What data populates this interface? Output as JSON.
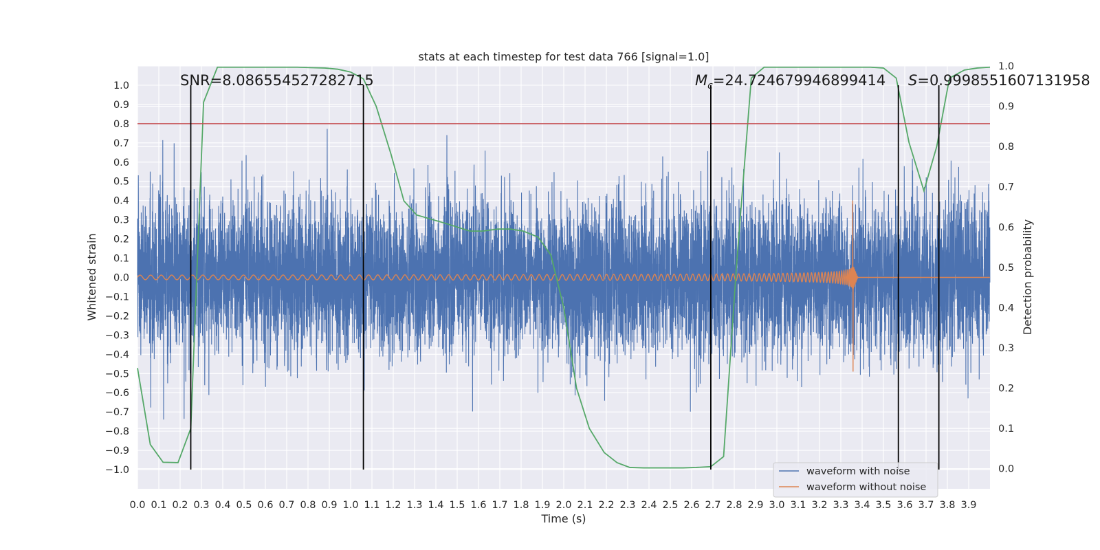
{
  "chart_data": {
    "type": "line",
    "title": "stats at each timestep for test data 766 [signal=1.0]",
    "xlabel": "Time (s)",
    "ylabel": "Whitened strain",
    "y2label": "Detection probability",
    "xlim": [
      0.0,
      4.0
    ],
    "ylim": [
      -1.1,
      1.1
    ],
    "y2lim": [
      -0.05,
      1.0
    ],
    "x_ticks": [
      0.0,
      0.1,
      0.2,
      0.3,
      0.4,
      0.5,
      0.6,
      0.7,
      0.8,
      0.9,
      1.0,
      1.1,
      1.2,
      1.3,
      1.4,
      1.5,
      1.6,
      1.7,
      1.8,
      1.9,
      2.0,
      2.1,
      2.2,
      2.3,
      2.4,
      2.5,
      2.6,
      2.7,
      2.8,
      2.9,
      3.0,
      3.1,
      3.2,
      3.3,
      3.4,
      3.5,
      3.6,
      3.7,
      3.8,
      3.9
    ],
    "x_tick_labels": [
      "0.0",
      "0.1",
      "0.2",
      "0.3",
      "0.4",
      "0.5",
      "0.6",
      "0.7",
      "0.8",
      "0.9",
      "1.0",
      "1.1",
      "1.2",
      "1.3",
      "1.4",
      "1.5",
      "1.6",
      "1.7",
      "1.8",
      "1.9",
      "2.0",
      "2.1",
      "2.2",
      "2.3",
      "2.4",
      "2.5",
      "2.6",
      "2.7",
      "2.8",
      "2.9",
      "3.0",
      "3.1",
      "3.2",
      "3.3",
      "3.4",
      "3.5",
      "3.6",
      "3.7",
      "3.8",
      "3.9"
    ],
    "y_ticks": [
      -1.0,
      -0.9,
      -0.8,
      -0.7,
      -0.6,
      -0.5,
      -0.4,
      -0.3,
      -0.2,
      -0.1,
      0.0,
      0.1,
      0.2,
      0.3,
      0.4,
      0.5,
      0.6,
      0.7,
      0.8,
      0.9,
      1.0
    ],
    "y_tick_labels": [
      "−1.0",
      "−0.9",
      "−0.8",
      "−0.7",
      "−0.6",
      "−0.5",
      "−0.4",
      "−0.3",
      "−0.2",
      "−0.1",
      "0.0",
      "0.1",
      "0.2",
      "0.3",
      "0.4",
      "0.5",
      "0.6",
      "0.7",
      "0.8",
      "0.9",
      "1.0"
    ],
    "y2_ticks": [
      0.0,
      0.1,
      0.2,
      0.3,
      0.4,
      0.5,
      0.6,
      0.7,
      0.8,
      0.9,
      1.0
    ],
    "y2_tick_labels": [
      "0.0",
      "0.1",
      "0.2",
      "0.3",
      "0.4",
      "0.5",
      "0.6",
      "0.7",
      "0.8",
      "0.9",
      "1.0"
    ],
    "grid": true,
    "threshold": {
      "value": 0.8,
      "color": "#c44e52"
    },
    "vlines": [
      0.25,
      1.06,
      2.69,
      3.57,
      3.76
    ],
    "annotations": {
      "snr": "SNR=8.086554527282715",
      "mc_symbol": "M",
      "mc_sub": "c",
      "mc_value": "=24.724679946899414",
      "s_symbol": "S",
      "s_value": "=0.9998551607131958"
    },
    "legend": {
      "position": "lower-right",
      "entries": [
        {
          "label": "waveform with noise",
          "color": "#4c72b0"
        },
        {
          "label": "waveform without noise",
          "color": "#dd8452"
        }
      ]
    },
    "noise_series": {
      "name": "waveform with noise",
      "color": "#4c72b0",
      "sigma": 0.2,
      "sample_rate": 2048,
      "note": "dense random strain; envelope approx -1.0 to 1.0"
    },
    "clean_series": {
      "name": "waveform without noise",
      "color": "#dd8452",
      "merger_time": 3.36,
      "peak_amplitude": 0.4,
      "min_amplitude": -0.49
    },
    "probability_series": {
      "name": "detection probability",
      "color": "#55a868",
      "x": [
        0.0,
        0.06,
        0.12,
        0.19,
        0.25,
        0.31,
        0.375,
        0.44,
        0.5,
        0.56,
        0.62,
        0.69,
        0.75,
        0.81,
        0.88,
        0.94,
        1.0,
        1.06,
        1.12,
        1.19,
        1.25,
        1.31,
        1.375,
        1.44,
        1.5,
        1.56,
        1.62,
        1.69,
        1.75,
        1.81,
        1.88,
        1.94,
        2.0,
        2.06,
        2.12,
        2.19,
        2.25,
        2.31,
        2.375,
        2.44,
        2.5,
        2.56,
        2.62,
        2.69,
        2.75,
        2.81,
        2.88,
        2.94,
        3.0,
        3.06,
        3.12,
        3.19,
        3.25,
        3.31,
        3.375,
        3.44,
        3.5,
        3.56,
        3.62,
        3.69,
        3.75,
        3.81,
        3.88,
        3.94,
        4.0
      ],
      "values": [
        0.25,
        0.06,
        0.016,
        0.015,
        0.1,
        0.91,
        0.997,
        0.997,
        0.997,
        0.997,
        0.997,
        0.997,
        0.997,
        0.996,
        0.995,
        0.992,
        0.985,
        0.968,
        0.9,
        0.78,
        0.665,
        0.63,
        0.62,
        0.61,
        0.6,
        0.59,
        0.59,
        0.595,
        0.595,
        0.59,
        0.575,
        0.53,
        0.4,
        0.2,
        0.1,
        0.04,
        0.015,
        0.003,
        0.002,
        0.002,
        0.002,
        0.002,
        0.003,
        0.005,
        0.03,
        0.5,
        0.97,
        0.997,
        0.997,
        0.997,
        0.997,
        0.997,
        0.997,
        0.997,
        0.997,
        0.997,
        0.995,
        0.97,
        0.81,
        0.69,
        0.8,
        0.97,
        0.99,
        0.995,
        0.997
      ]
    }
  }
}
